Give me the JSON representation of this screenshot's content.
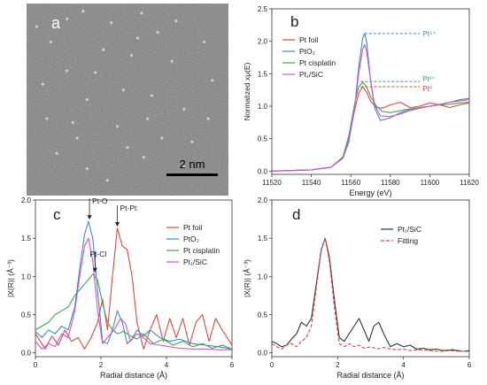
{
  "panel_a": {
    "letter": "a",
    "scale_bar_label": "2 nm",
    "bright_spots": [
      [
        0.28,
        0.04
      ],
      [
        0.57,
        0.05
      ],
      [
        0.74,
        0.09
      ],
      [
        0.2,
        0.08
      ],
      [
        0.55,
        0.18
      ],
      [
        0.12,
        0.2
      ],
      [
        0.38,
        0.24
      ],
      [
        0.52,
        0.27
      ],
      [
        0.48,
        0.45
      ],
      [
        0.62,
        0.48
      ],
      [
        0.08,
        0.42
      ],
      [
        0.3,
        0.5
      ],
      [
        0.78,
        0.55
      ],
      [
        0.23,
        0.62
      ],
      [
        0.45,
        0.64
      ],
      [
        0.67,
        0.7
      ],
      [
        0.72,
        0.3
      ],
      [
        0.34,
        0.36
      ],
      [
        0.9,
        0.6
      ],
      [
        0.15,
        0.78
      ],
      [
        0.58,
        0.8
      ],
      [
        0.82,
        0.72
      ],
      [
        0.3,
        0.86
      ],
      [
        0.42,
        0.1
      ],
      [
        0.88,
        0.2
      ],
      [
        0.1,
        0.6
      ],
      [
        0.5,
        0.75
      ],
      [
        0.65,
        0.15
      ],
      [
        0.2,
        0.35
      ],
      [
        0.78,
        0.85
      ],
      [
        0.05,
        0.12
      ],
      [
        0.4,
        0.92
      ],
      [
        0.6,
        0.6
      ],
      [
        0.92,
        0.4
      ],
      [
        0.25,
        0.7
      ]
    ]
  },
  "chart_data": [
    {
      "panel": "b",
      "type": "line",
      "xlabel": "Energy (eV)",
      "ylabel": "Normalized xμ(E)",
      "xlim": [
        11520,
        11620
      ],
      "ylim": [
        -0.05,
        2.5
      ],
      "x_ticks": [
        11520,
        11540,
        11560,
        11580,
        11600,
        11620
      ],
      "y_ticks": [
        0.0,
        0.5,
        1.0,
        1.5,
        2.0,
        2.5
      ],
      "legend_position": "middle-left",
      "series": [
        {
          "name": "Pt foil",
          "color": "#e8453c",
          "x": [
            11520,
            11540,
            11550,
            11556,
            11559,
            11562,
            11564,
            11566,
            11568,
            11570,
            11573,
            11576,
            11580,
            11585,
            11590,
            11595,
            11600,
            11605,
            11610,
            11615,
            11620
          ],
          "y": [
            0.0,
            0.02,
            0.06,
            0.2,
            0.5,
            0.95,
            1.2,
            1.3,
            1.22,
            1.08,
            0.98,
            0.97,
            1.02,
            1.06,
            0.98,
            1.0,
            1.05,
            1.02,
            0.98,
            1.02,
            1.05
          ]
        },
        {
          "name": "PtO₂",
          "color": "#3b8fc0",
          "x": [
            11520,
            11540,
            11550,
            11556,
            11559,
            11562,
            11564,
            11566,
            11567,
            11568,
            11570,
            11572,
            11575,
            11580,
            11585,
            11590,
            11595,
            11600,
            11605,
            11610,
            11615,
            11620
          ],
          "y": [
            0.0,
            0.02,
            0.06,
            0.2,
            0.45,
            1.0,
            1.6,
            2.05,
            2.12,
            2.0,
            1.4,
            0.98,
            0.78,
            0.82,
            0.9,
            0.95,
            0.98,
            1.0,
            1.02,
            1.06,
            1.1,
            1.12
          ]
        },
        {
          "name": "Pt cisplatin",
          "color": "#3aaa4c",
          "x": [
            11520,
            11540,
            11550,
            11556,
            11559,
            11562,
            11564,
            11566,
            11568,
            11570,
            11573,
            11576,
            11580,
            11585,
            11590,
            11595,
            11600,
            11605,
            11610,
            11615,
            11620
          ],
          "y": [
            0.0,
            0.02,
            0.06,
            0.22,
            0.55,
            1.05,
            1.3,
            1.37,
            1.3,
            1.15,
            1.0,
            0.92,
            0.9,
            0.93,
            0.96,
            0.98,
            1.0,
            1.02,
            1.03,
            1.05,
            1.06
          ]
        },
        {
          "name": "Pt₁/SiC",
          "color": "#d94fd0",
          "x": [
            11520,
            11540,
            11550,
            11556,
            11559,
            11562,
            11564,
            11566,
            11567,
            11568,
            11570,
            11572,
            11575,
            11580,
            11585,
            11590,
            11595,
            11600,
            11605,
            11610,
            11615,
            11620
          ],
          "y": [
            0.0,
            0.02,
            0.06,
            0.2,
            0.5,
            1.0,
            1.5,
            1.88,
            1.95,
            1.85,
            1.4,
            1.02,
            0.85,
            0.84,
            0.88,
            0.93,
            0.97,
            1.0,
            1.03,
            1.06,
            1.08,
            1.1
          ]
        }
      ],
      "reference_lines": [
        {
          "label": "Pt⁴⁺",
          "y": 2.12,
          "x_start": 11567,
          "x_end": 11595,
          "color": "#3b8fc0"
        },
        {
          "label": "Pt²⁺",
          "y": 1.38,
          "x_start": 11565,
          "x_end": 11595,
          "color": "#3aaa4c"
        },
        {
          "label": "Pt⁰",
          "y": 1.3,
          "x_start": 11565,
          "x_end": 11595,
          "color": "#e8453c"
        }
      ]
    },
    {
      "panel": "c",
      "type": "line",
      "xlabel": "Radial distance (Å)",
      "ylabel": "|X(R)| (Å⁻³)",
      "xlim": [
        0,
        6
      ],
      "ylim": [
        -0.05,
        2.0
      ],
      "x_ticks": [
        0,
        2,
        4,
        6
      ],
      "y_ticks": [
        0.0,
        0.5,
        1.0,
        1.5,
        2.0
      ],
      "legend_position": "right",
      "series": [
        {
          "name": "Pt foil",
          "color": "#e8453c",
          "x": [
            0,
            0.3,
            0.5,
            0.7,
            0.9,
            1.1,
            1.3,
            1.5,
            1.7,
            1.9,
            2.05,
            2.2,
            2.35,
            2.5,
            2.65,
            2.8,
            2.95,
            3.1,
            3.3,
            3.5,
            3.7,
            3.9,
            4.1,
            4.3,
            4.5,
            4.7,
            4.9,
            5.1,
            5.3,
            5.5,
            5.7,
            6.0
          ],
          "y": [
            0.25,
            0.05,
            0.22,
            0.1,
            0.3,
            0.15,
            0.2,
            0.05,
            0.2,
            0.4,
            0.7,
            0.3,
            1.0,
            1.63,
            1.4,
            1.35,
            1.0,
            0.4,
            0.05,
            0.3,
            0.5,
            0.15,
            0.45,
            0.2,
            0.45,
            0.1,
            0.4,
            0.5,
            0.15,
            0.45,
            0.3,
            0.1
          ]
        },
        {
          "name": "PtO₂",
          "color": "#3b8fc0",
          "x": [
            0,
            0.2,
            0.4,
            0.6,
            0.8,
            1.0,
            1.2,
            1.35,
            1.5,
            1.62,
            1.75,
            1.9,
            2.05,
            2.2,
            2.35,
            2.5,
            2.65,
            2.8,
            2.95,
            3.1,
            3.3,
            3.5,
            3.8,
            4.1,
            4.4,
            4.8,
            5.2,
            5.6,
            6.0
          ],
          "y": [
            0.28,
            0.2,
            0.3,
            0.25,
            0.35,
            0.3,
            0.6,
            1.1,
            1.55,
            1.72,
            1.5,
            0.8,
            0.15,
            0.12,
            0.3,
            0.55,
            0.4,
            0.12,
            0.18,
            0.3,
            0.22,
            0.3,
            0.2,
            0.15,
            0.18,
            0.12,
            0.1,
            0.08,
            0.05
          ]
        },
        {
          "name": "Pt cisplatin",
          "color": "#3aaa4c",
          "x": [
            0,
            0.2,
            0.4,
            0.6,
            0.8,
            1.0,
            1.2,
            1.4,
            1.6,
            1.75,
            1.9,
            2.05,
            2.2,
            2.35,
            2.5,
            2.7,
            2.9,
            3.1,
            3.3,
            3.6,
            3.9,
            4.2,
            4.5,
            4.8,
            5.1,
            5.4,
            5.7,
            6.0
          ],
          "y": [
            0.3,
            0.35,
            0.4,
            0.5,
            0.55,
            0.6,
            0.75,
            0.85,
            0.95,
            1.03,
            0.95,
            0.65,
            0.4,
            0.3,
            0.25,
            0.28,
            0.22,
            0.18,
            0.25,
            0.12,
            0.18,
            0.1,
            0.15,
            0.08,
            0.12,
            0.06,
            0.1,
            0.05
          ]
        },
        {
          "name": "Pt₁/SiC",
          "color": "#d94fd0",
          "x": [
            0,
            0.2,
            0.4,
            0.6,
            0.8,
            1.0,
            1.2,
            1.35,
            1.5,
            1.62,
            1.75,
            1.9,
            2.05,
            2.2,
            2.4,
            2.6,
            2.75,
            2.9,
            3.1,
            3.3,
            3.5,
            3.8,
            4.1,
            4.4,
            4.8,
            5.2,
            5.6,
            6.0
          ],
          "y": [
            0.15,
            0.05,
            0.12,
            0.08,
            0.25,
            0.2,
            0.55,
            1.0,
            1.4,
            1.5,
            1.2,
            0.55,
            0.12,
            0.2,
            0.3,
            0.45,
            0.38,
            0.15,
            0.25,
            0.2,
            0.12,
            0.1,
            0.08,
            0.06,
            0.05,
            0.05,
            0.04,
            0.04
          ]
        }
      ],
      "annotations": [
        {
          "text": "Pt-O",
          "x": 1.65,
          "y": 1.72
        },
        {
          "text": "Pt-Cl",
          "x": 1.82,
          "y": 1.03
        },
        {
          "text": "Pt-Pt",
          "x": 2.5,
          "y": 1.63
        }
      ]
    },
    {
      "panel": "d",
      "type": "line",
      "xlabel": "Radial distance (Å)",
      "ylabel": "|X(R)| (Å⁻³)",
      "xlim": [
        0,
        6
      ],
      "ylim": [
        -0.05,
        2.0
      ],
      "x_ticks": [
        0,
        2,
        4,
        6
      ],
      "y_ticks": [
        0.0,
        0.5,
        1.0,
        1.5,
        2.0
      ],
      "legend_position": "top-right",
      "series": [
        {
          "name": "Pt₁/SiC",
          "color": "#333333",
          "dash": false,
          "x": [
            0,
            0.15,
            0.3,
            0.45,
            0.6,
            0.75,
            0.9,
            1.05,
            1.2,
            1.35,
            1.5,
            1.62,
            1.75,
            1.9,
            2.05,
            2.2,
            2.35,
            2.5,
            2.65,
            2.8,
            2.95,
            3.1,
            3.25,
            3.4,
            3.6,
            3.8,
            4.0,
            4.2,
            4.4,
            4.6,
            4.8,
            5.0,
            5.2,
            5.5,
            5.8,
            6.0
          ],
          "y": [
            0.15,
            0.12,
            0.08,
            0.1,
            0.18,
            0.25,
            0.4,
            0.35,
            0.45,
            0.9,
            1.35,
            1.5,
            1.25,
            0.7,
            0.2,
            0.15,
            0.25,
            0.35,
            0.45,
            0.3,
            0.15,
            0.35,
            0.4,
            0.25,
            0.08,
            0.12,
            0.08,
            0.1,
            0.05,
            0.06,
            0.04,
            0.05,
            0.03,
            0.04,
            0.02,
            0.03
          ]
        },
        {
          "name": "Fitting",
          "color": "#e8453c",
          "dash": true,
          "x": [
            0,
            0.15,
            0.3,
            0.45,
            0.6,
            0.75,
            0.9,
            1.05,
            1.2,
            1.35,
            1.5,
            1.62,
            1.75,
            1.9,
            2.05,
            2.2,
            2.35,
            2.5,
            2.65,
            2.8,
            3.0,
            3.2,
            3.4,
            3.6,
            3.8,
            4.0,
            4.2,
            4.5,
            4.8,
            5.1,
            5.4,
            5.7,
            6.0
          ],
          "y": [
            0.12,
            0.08,
            0.05,
            0.1,
            0.12,
            0.08,
            0.15,
            0.2,
            0.35,
            0.85,
            1.35,
            1.5,
            1.2,
            0.6,
            0.12,
            0.08,
            0.12,
            0.08,
            0.1,
            0.06,
            0.08,
            0.05,
            0.07,
            0.05,
            0.04,
            0.05,
            0.03,
            0.04,
            0.03,
            0.02,
            0.03,
            0.02,
            0.02
          ]
        }
      ]
    }
  ]
}
